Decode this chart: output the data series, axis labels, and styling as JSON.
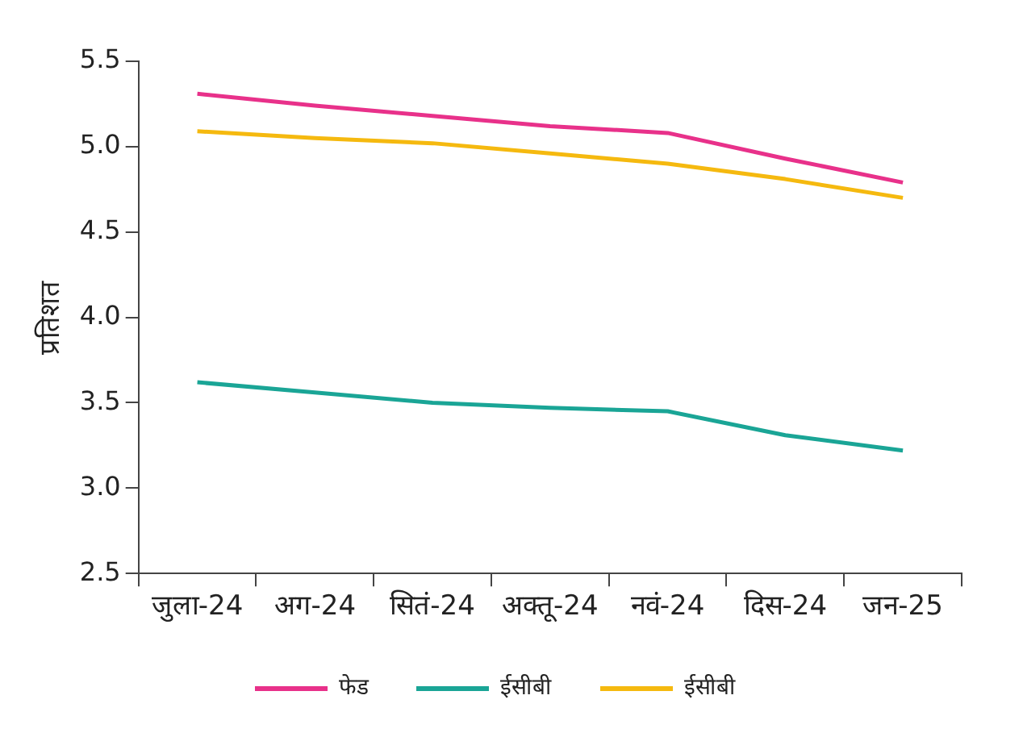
{
  "chart_data": {
    "type": "line",
    "ylabel": "प्रतिशत",
    "categories": [
      "जुला-24",
      "अग-24",
      "सितं-24",
      "अक्तू-24",
      "नवं-24",
      "दिस-24",
      "जन-25"
    ],
    "series": [
      {
        "name": "फेड",
        "color": "#e8318a",
        "values": [
          5.31,
          5.24,
          5.18,
          5.12,
          5.08,
          4.93,
          4.79
        ]
      },
      {
        "name": "ईसीबी",
        "color": "#1aa596",
        "values": [
          3.62,
          3.56,
          3.5,
          3.47,
          3.45,
          3.31,
          3.22
        ]
      },
      {
        "name": "ईसीबी",
        "color": "#f5b90f",
        "values": [
          5.09,
          5.05,
          5.02,
          4.96,
          4.9,
          4.81,
          4.7
        ]
      }
    ],
    "ylim": [
      2.5,
      5.5
    ],
    "yticks": [
      {
        "value": 2.5,
        "label": "2.5"
      },
      {
        "value": 3,
        "label": "3.0"
      },
      {
        "value": 3.5,
        "label": "3.5"
      },
      {
        "value": 4,
        "label": "4.0"
      },
      {
        "value": 4.5,
        "label": "4.5"
      },
      {
        "value": 5,
        "label": "5.0"
      },
      {
        "value": 5.5,
        "label": "5.5"
      }
    ],
    "grid": false,
    "legend": "bottom",
    "marker": "none",
    "line_style": "solid"
  }
}
